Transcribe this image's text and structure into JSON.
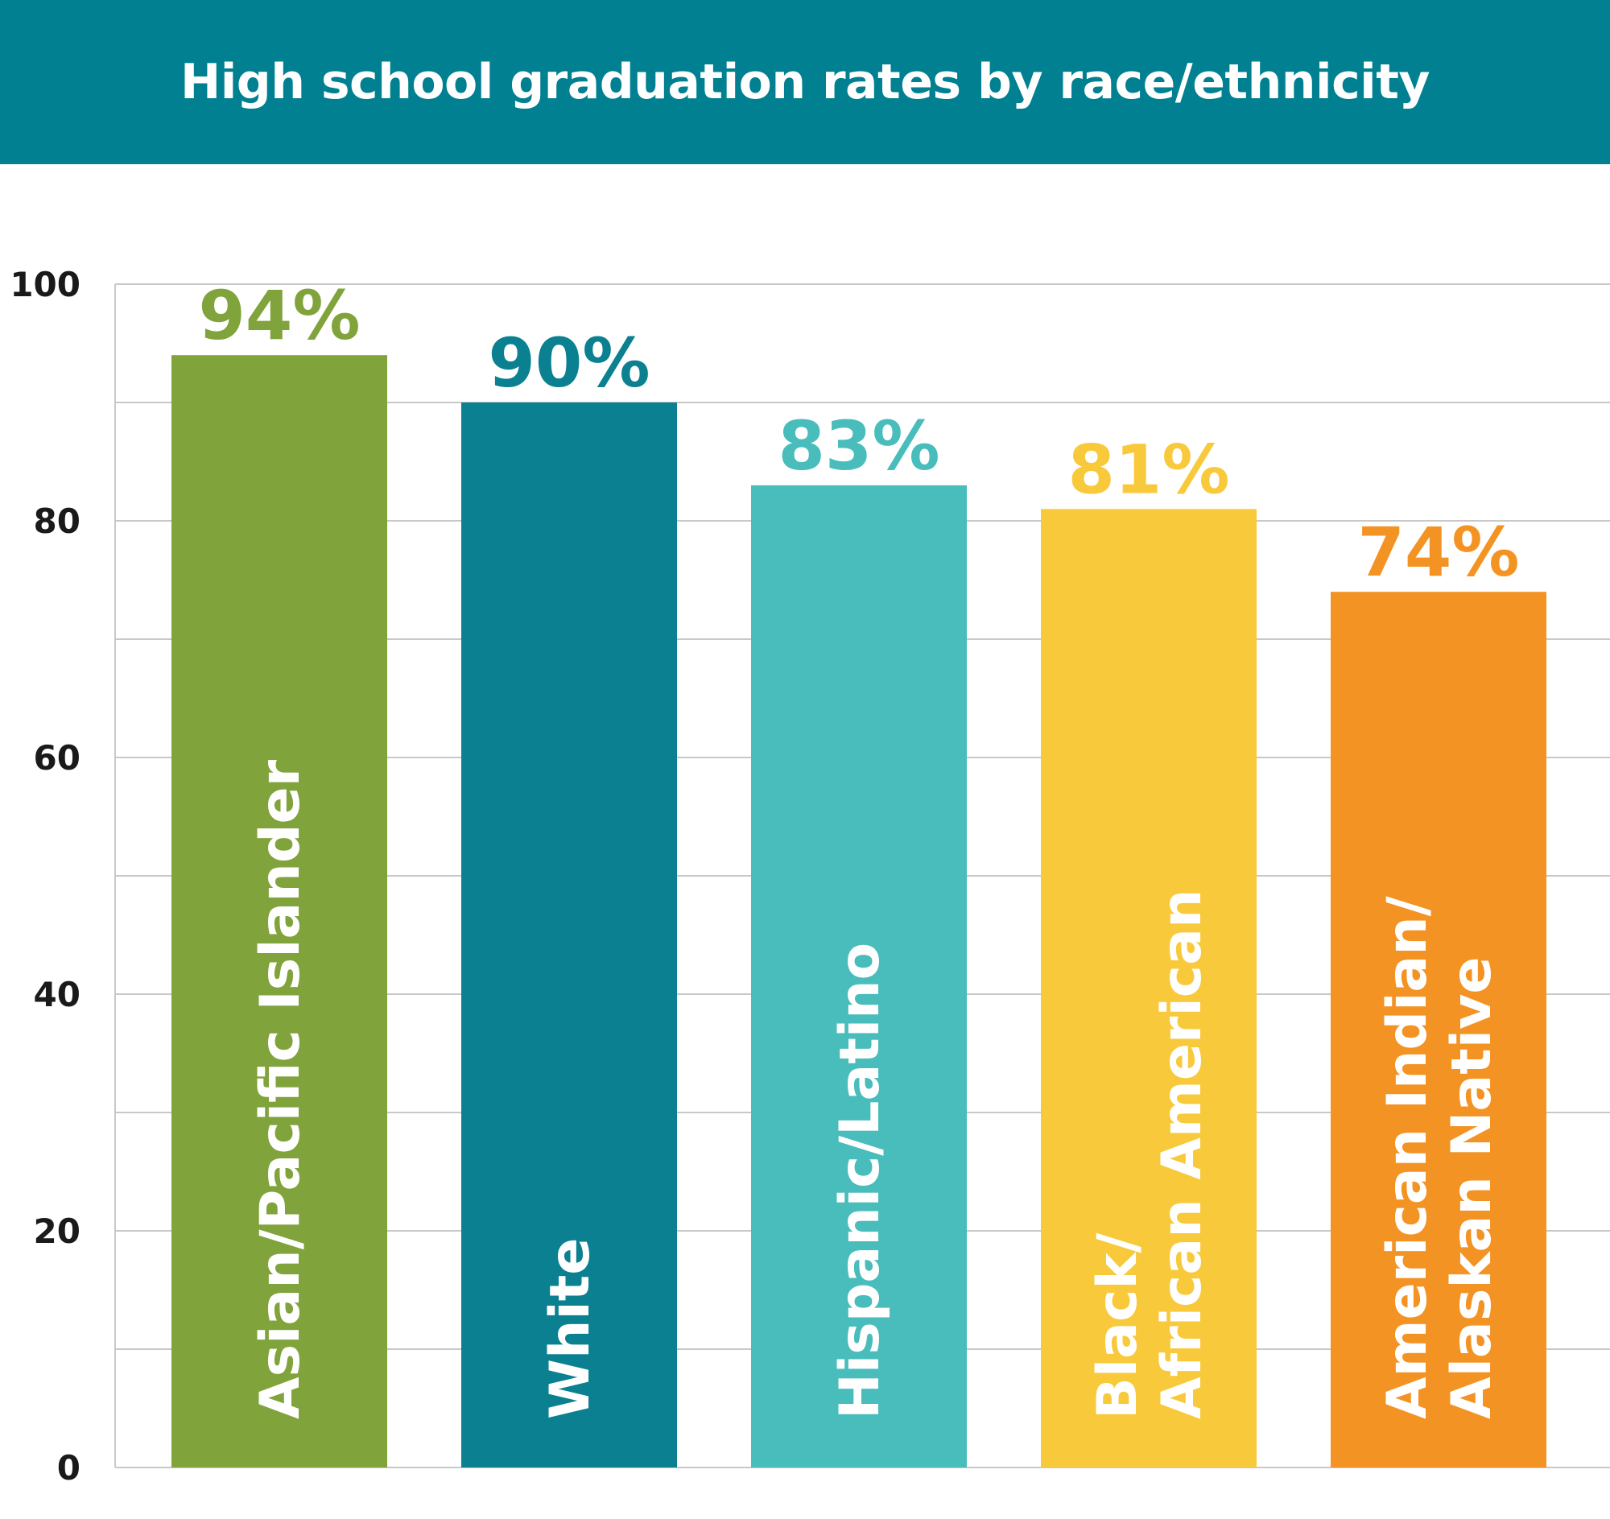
{
  "colors": {
    "header": "#008091",
    "grid": "#c8c8c8"
  },
  "chart_data": {
    "type": "bar",
    "title": "High school graduation rates by race/ethnicity",
    "xlabel": "",
    "ylabel": "",
    "ylim": [
      0,
      100
    ],
    "yticks": [
      0,
      20,
      40,
      60,
      80,
      100
    ],
    "grid": true,
    "categories": [
      [
        "Asian/Pacific Islander"
      ],
      [
        "White"
      ],
      [
        "Hispanic/Latino"
      ],
      [
        "Black/",
        "African American"
      ],
      [
        "American Indian/",
        "Alaskan Native"
      ]
    ],
    "values": [
      94,
      90,
      83,
      81,
      74
    ],
    "data_labels": [
      "94%",
      "90%",
      "83%",
      "81%",
      "74%"
    ],
    "bar_colors": [
      "#80a33c",
      "#0a8090",
      "#49bdbb",
      "#f9c93c",
      "#f39324"
    ],
    "label_colors": [
      "#80a33c",
      "#0a8090",
      "#49bdbb",
      "#f9c93c",
      "#f39324"
    ]
  }
}
